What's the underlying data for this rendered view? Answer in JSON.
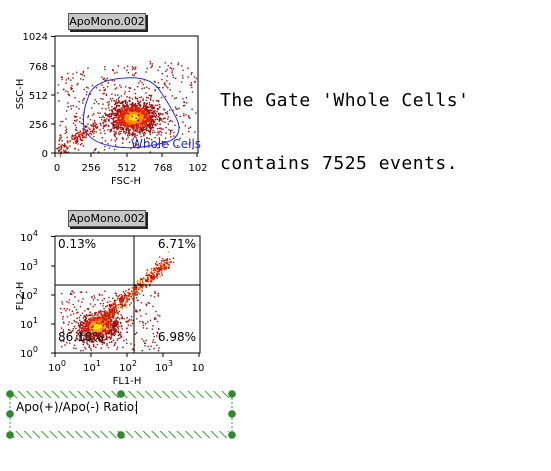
{
  "plots": [
    {
      "id": "scatter1",
      "tab_label": "ApoMono.002",
      "chart_data": {
        "type": "scatter",
        "xlabel": "FSC-H",
        "ylabel": "SSC-H",
        "xlim": [
          0,
          1024
        ],
        "ylim": [
          0,
          1024
        ],
        "x_ticks": [
          "0",
          "256",
          "512",
          "768",
          "102"
        ],
        "y_ticks": [
          "0",
          "256",
          "512",
          "768",
          "1024"
        ],
        "gate": {
          "name": "Whole Cells",
          "color": "#1e2ed0"
        }
      }
    },
    {
      "id": "scatter2",
      "tab_label": "ApoMono.002",
      "chart_data": {
        "type": "scatter",
        "xlabel": "FL1-H",
        "ylabel": "FL2-H",
        "scale": "log",
        "xlim": [
          1,
          10000
        ],
        "ylim": [
          1,
          10000
        ],
        "x_ticks": [
          "10^0",
          "10^1",
          "10^2",
          "10^3",
          "10"
        ],
        "y_ticks": [
          "10^0",
          "10^1",
          "10^2",
          "10^3",
          "10^4"
        ],
        "quadrant_percentages": {
          "upper_left": "0.13%",
          "upper_right": "6.71%",
          "lower_left": "86.18%",
          "lower_right": "6.98%"
        }
      }
    }
  ],
  "message": {
    "line1": "The Gate 'Whole Cells'",
    "line2": "contains 7525 events."
  },
  "textbox": {
    "label": "Apo(+)/Apo(-) Ratio:"
  },
  "colors": {
    "gate": "#1e2ed0",
    "tab_bg": "#c8c8c8",
    "selection_hatch": "#3c9b3c",
    "handle": "#2e8b2e"
  }
}
